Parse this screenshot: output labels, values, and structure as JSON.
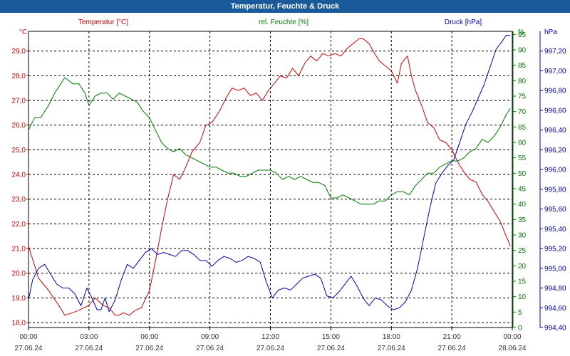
{
  "title": "Temperatur, Feuchte & Druck",
  "colors": {
    "temperature": "#cc0000",
    "humidity": "#007700",
    "pressure": "#0000aa",
    "title_bg": "#1a5a9a",
    "axis_text": "#333333"
  },
  "chart_data": {
    "type": "line",
    "title": "Temperatur, Feuchte & Druck",
    "grid": true,
    "x_ticks": [
      {
        "time": "00:00",
        "date": "27.06.24"
      },
      {
        "time": "03:00",
        "date": "27.06.24"
      },
      {
        "time": "06:00",
        "date": "27.06.24"
      },
      {
        "time": "09:00",
        "date": "27.06.24"
      },
      {
        "time": "12:00",
        "date": "27.06.24"
      },
      {
        "time": "15:00",
        "date": "27.06.24"
      },
      {
        "time": "18:00",
        "date": "27.06.24"
      },
      {
        "time": "21:00",
        "date": "27.06.24"
      },
      {
        "time": "00:00",
        "date": "28.06.24"
      }
    ],
    "xlim_hours": [
      0,
      24
    ],
    "axes": {
      "temperature": {
        "unit": "°C",
        "range": [
          17.8,
          29.8
        ],
        "ticks": [
          "18,0",
          "19,0",
          "20,0",
          "21,0",
          "22,0",
          "23,0",
          "24,0",
          "25,0",
          "26,0",
          "27,0",
          "28,0",
          "29,0"
        ]
      },
      "humidity": {
        "unit": "%",
        "range": [
          0,
          96
        ],
        "ticks": [
          "0",
          "5",
          "10",
          "15",
          "20",
          "25",
          "30",
          "35",
          "40",
          "45",
          "50",
          "55",
          "60",
          "65",
          "70",
          "75",
          "80",
          "85",
          "90",
          "95"
        ]
      },
      "pressure": {
        "unit": "hPa",
        "range": [
          994.4,
          997.4
        ],
        "ticks": [
          "994,40",
          "994,60",
          "994,80",
          "995,00",
          "995,20",
          "995,40",
          "995,60",
          "995,80",
          "996,00",
          "996,20",
          "996,40",
          "996,60",
          "996,80",
          "997,00",
          "997,20"
        ]
      }
    },
    "legend": [
      "Temperatur [°C]",
      "rel. Feuchte [%]",
      "Druck [hPa]"
    ],
    "series": [
      {
        "name": "Temperatur [°C]",
        "axis": "temperature",
        "x": [
          0,
          0.5,
          1,
          1.5,
          1.8,
          2.2,
          2.5,
          3,
          3.3,
          3.7,
          4,
          4.3,
          4.5,
          4.7,
          5,
          5.3,
          5.6,
          6,
          6.3,
          6.6,
          6.9,
          7.2,
          7.5,
          7.8,
          8.1,
          8.5,
          8.8,
          9.1,
          9.5,
          9.8,
          10.1,
          10.4,
          10.7,
          11,
          11.3,
          11.6,
          11.9,
          12.2,
          12.5,
          12.8,
          13.1,
          13.4,
          13.7,
          14,
          14.3,
          14.6,
          14.9,
          15.2,
          15.5,
          15.8,
          16.1,
          16.4,
          16.6,
          16.9,
          17.1,
          17.4,
          17.7,
          18,
          18.3,
          18.5,
          18.8,
          19,
          19.2,
          19.5,
          19.8,
          20.1,
          20.4,
          20.7,
          21,
          21.3,
          21.6,
          21.9,
          22.2,
          22.5,
          22.8,
          23.1,
          23.4,
          23.7,
          23.9
        ],
        "values": [
          21.1,
          19.8,
          19.3,
          18.7,
          18.3,
          18.4,
          18.5,
          18.7,
          19.0,
          18.7,
          18.6,
          18.3,
          18.3,
          18.4,
          18.3,
          18.5,
          18.6,
          19.3,
          20.5,
          21.8,
          23.0,
          24.0,
          23.8,
          24.3,
          24.9,
          25.3,
          26.0,
          26.1,
          26.6,
          27.1,
          27.5,
          27.4,
          27.5,
          27.2,
          27.3,
          27.0,
          27.4,
          27.7,
          28.0,
          27.9,
          28.3,
          28.0,
          28.5,
          28.8,
          28.6,
          28.9,
          28.8,
          28.9,
          28.8,
          29.1,
          29.3,
          29.5,
          29.5,
          29.3,
          29.0,
          28.6,
          28.4,
          28.2,
          27.7,
          28.5,
          28.8,
          28.0,
          27.4,
          26.8,
          26.1,
          25.9,
          25.4,
          25.3,
          25.0,
          24.5,
          24.1,
          23.8,
          23.7,
          23.2,
          22.9,
          22.5,
          22.1,
          21.5,
          21.1
        ]
      },
      {
        "name": "rel. Feuchte [%]",
        "axis": "humidity",
        "x": [
          0,
          0.3,
          0.6,
          1,
          1.3,
          1.6,
          1.8,
          2.2,
          2.5,
          2.8,
          3,
          3.3,
          3.6,
          3.9,
          4.2,
          4.5,
          4.8,
          5.1,
          5.4,
          5.7,
          6,
          6.3,
          6.6,
          6.9,
          7.2,
          7.5,
          7.8,
          8.1,
          8.4,
          8.7,
          9,
          9.3,
          9.6,
          9.9,
          10.2,
          10.5,
          10.8,
          11.1,
          11.4,
          11.7,
          12,
          12.3,
          12.6,
          12.9,
          13.2,
          13.5,
          13.8,
          14.1,
          14.4,
          14.7,
          15,
          15.3,
          15.6,
          15.9,
          16.2,
          16.5,
          16.8,
          17.1,
          17.4,
          17.7,
          18,
          18.3,
          18.6,
          18.9,
          19.2,
          19.5,
          19.8,
          20.1,
          20.4,
          20.7,
          21,
          21.3,
          21.6,
          21.9,
          22.2,
          22.5,
          22.8,
          23.1,
          23.4,
          23.7,
          23.9
        ],
        "values": [
          64,
          68,
          68,
          72,
          76,
          79,
          81,
          79,
          79,
          76,
          72,
          75,
          76,
          76,
          74,
          76,
          75,
          74,
          73,
          70,
          68,
          64,
          60,
          58,
          57,
          58,
          56,
          55,
          54,
          53,
          52,
          52,
          51,
          50,
          50,
          49,
          49,
          50,
          51,
          51,
          51,
          50,
          48,
          49,
          48,
          49,
          48,
          47,
          47,
          46,
          42,
          42,
          43,
          42,
          41,
          40,
          40,
          40,
          41,
          41,
          43,
          44,
          44,
          43,
          46,
          48,
          50,
          50,
          52,
          53,
          54,
          54,
          55,
          57,
          58,
          61,
          60,
          62,
          65,
          69,
          71
        ]
      },
      {
        "name": "Druck [hPa]",
        "axis": "pressure",
        "x": [
          0,
          0.2,
          0.5,
          0.8,
          1.1,
          1.4,
          1.7,
          2,
          2.3,
          2.6,
          2.9,
          3.1,
          3.4,
          3.6,
          3.8,
          4,
          4.3,
          4.6,
          4.9,
          5.2,
          5.5,
          5.8,
          6.1,
          6.4,
          6.7,
          7,
          7.3,
          7.6,
          7.9,
          8.2,
          8.5,
          8.8,
          9.1,
          9.4,
          9.7,
          10,
          10.3,
          10.6,
          10.9,
          11.2,
          11.5,
          11.8,
          12.1,
          12.4,
          12.7,
          13,
          13.3,
          13.6,
          13.9,
          14.2,
          14.5,
          14.8,
          15.1,
          15.4,
          15.7,
          16,
          16.3,
          16.6,
          16.9,
          17.2,
          17.5,
          17.8,
          18.1,
          18.4,
          18.7,
          19,
          19.3,
          19.6,
          19.9,
          20.2,
          20.5,
          20.8,
          21.1,
          21.4,
          21.7,
          22,
          22.3,
          22.6,
          22.9,
          23.2,
          23.5,
          23.7,
          23.9
        ],
        "values": [
          994.68,
          994.88,
          995.0,
          995.04,
          994.94,
          994.84,
          994.8,
          994.8,
          994.74,
          994.62,
          994.8,
          994.72,
          994.58,
          994.58,
          994.7,
          994.56,
          994.68,
          994.88,
          995.04,
          995.0,
          995.08,
          995.16,
          995.2,
          995.14,
          995.16,
          995.14,
          995.12,
          995.18,
          995.18,
          995.14,
          995.08,
          995.08,
          995.02,
          995.08,
          995.12,
          995.1,
          995.06,
          995.08,
          995.12,
          995.1,
          995.06,
          994.86,
          994.7,
          994.78,
          994.8,
          994.78,
          994.84,
          994.9,
          994.92,
          994.94,
          994.9,
          994.72,
          994.7,
          994.76,
          994.84,
          994.92,
          994.82,
          994.7,
          994.62,
          994.7,
          994.68,
          994.62,
          994.58,
          994.6,
          994.66,
          994.78,
          995.0,
          995.3,
          995.6,
          995.86,
          995.96,
          996.04,
          996.1,
          996.28,
          996.46,
          996.58,
          996.72,
          996.86,
          997.04,
          997.22,
          997.3,
          997.36,
          997.36
        ]
      }
    ]
  }
}
